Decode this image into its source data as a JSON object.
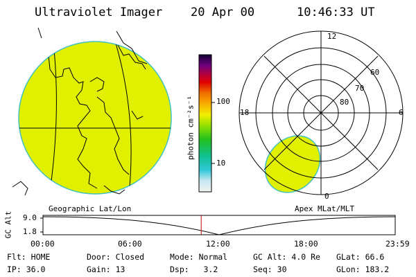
{
  "header": {
    "title": "Ultraviolet Imager",
    "date": "20 Apr 00",
    "time": "10:46:33 UT"
  },
  "colors": {
    "fill": "#e0f000",
    "edge": "#40c0c0",
    "marker": "#cc0000"
  },
  "colorbar": {
    "label": "photon cm⁻²s⁻¹",
    "ticks": [
      "100",
      "10"
    ]
  },
  "left_panel": {
    "caption": "Geographic Lat/Lon"
  },
  "right_panel": {
    "caption": "Apex MLat/MLT",
    "mlt_labels": {
      "top": "12",
      "left": "18",
      "right": "6",
      "bottom": "0"
    },
    "lat_labels": [
      "60",
      "70",
      "80"
    ]
  },
  "altitude_plot": {
    "ylabel": "GC Alt",
    "yticks": [
      "9.0",
      "1.8"
    ],
    "xticks": [
      "00:00",
      "06:00",
      "12:00",
      "18:00",
      "23:59"
    ],
    "cursor_hours": 10.78
  },
  "info": {
    "row1": [
      {
        "label": "Flt:",
        "value": "HOME"
      },
      {
        "label": "Door:",
        "value": "Closed"
      },
      {
        "label": "Mode:",
        "value": "Normal"
      },
      {
        "label": "GC Alt:",
        "value": "4.0 Re"
      },
      {
        "label": "GLat:",
        "value": "66.6"
      }
    ],
    "row2": [
      {
        "label": "IP:",
        "value": "36.0"
      },
      {
        "label": "Gain:",
        "value": "13"
      },
      {
        "label": "Dsp:",
        "value": "3.2"
      },
      {
        "label": "Seq:",
        "value": "30"
      },
      {
        "label": "GLon:",
        "value": "183.2"
      }
    ]
  }
}
